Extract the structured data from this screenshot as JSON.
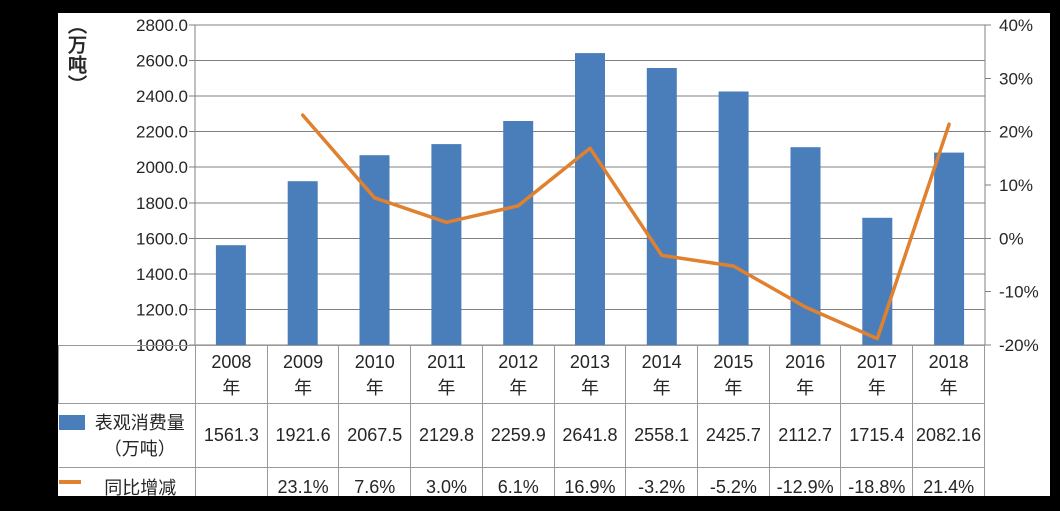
{
  "chart_data": {
    "type": "bar+line",
    "categories": [
      "2008年",
      "2009年",
      "2010年",
      "2011年",
      "2012年",
      "2013年",
      "2014年",
      "2015年",
      "2016年",
      "2017年",
      "2018年"
    ],
    "category_numbers": [
      "2008",
      "2009",
      "2010",
      "2011",
      "2012",
      "2013",
      "2014",
      "2015",
      "2016",
      "2017",
      "2018"
    ],
    "year_suffix": "年",
    "series": [
      {
        "name": "表观消费量（万吨）",
        "type": "bar",
        "axis": "left",
        "values": [
          1561.3,
          1921.6,
          2067.5,
          2129.8,
          2259.9,
          2641.8,
          2558.1,
          2425.7,
          2112.7,
          1715.4,
          2082.16
        ]
      },
      {
        "name": "同比增减",
        "type": "line",
        "axis": "right",
        "values": [
          null,
          23.1,
          7.6,
          3.0,
          6.1,
          16.9,
          -3.2,
          -5.2,
          -12.9,
          -18.8,
          21.4
        ]
      }
    ],
    "left_axis": {
      "title": "（万吨）",
      "min": 1000,
      "max": 2800,
      "step": 200,
      "tick_labels": [
        "2800.0",
        "2600.0",
        "2400.0",
        "2200.0",
        "2000.0",
        "1800.0",
        "1600.0",
        "1400.0",
        "1200.0",
        "1000.0"
      ]
    },
    "right_axis": {
      "min": -20,
      "max": 40,
      "step": 10,
      "tick_labels": [
        "40%",
        "30%",
        "20%",
        "10%",
        "0%",
        "-10%",
        "-20%"
      ]
    },
    "grid": true,
    "legend_position": "table-left"
  },
  "table": {
    "rows": [
      {
        "label_line1": "表观消费量",
        "label_line2": "（万吨）",
        "swatch": "bar",
        "values": [
          "1561.3",
          "1921.6",
          "2067.5",
          "2129.8",
          "2259.9",
          "2641.8",
          "2558.1",
          "2425.7",
          "2112.7",
          "1715.4",
          "2082.16"
        ]
      },
      {
        "label_line1": "同比增减",
        "swatch": "line",
        "values": [
          "",
          "23.1%",
          "7.6%",
          "3.0%",
          "6.1%",
          "16.9%",
          "-3.2%",
          "-5.2%",
          "-12.9%",
          "-18.8%",
          "21.4%"
        ]
      }
    ]
  },
  "colors": {
    "bar": "#4A7EBB",
    "line": "#E0812F",
    "grid": "#808080",
    "table_border": "#999999",
    "text": "#262626",
    "frame": "#000000",
    "canvas_bg": "#FFFFFF"
  }
}
